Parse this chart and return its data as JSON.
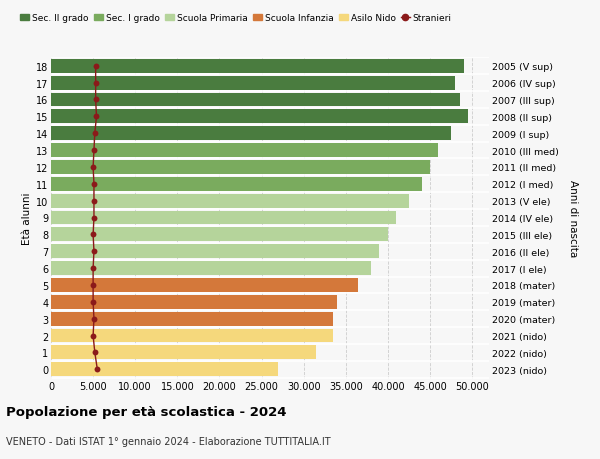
{
  "ages": [
    0,
    1,
    2,
    3,
    4,
    5,
    6,
    7,
    8,
    9,
    10,
    11,
    12,
    13,
    14,
    15,
    16,
    17,
    18
  ],
  "years": [
    "2023 (nido)",
    "2022 (nido)",
    "2021 (nido)",
    "2020 (mater)",
    "2019 (mater)",
    "2018 (mater)",
    "2017 (I ele)",
    "2016 (II ele)",
    "2015 (III ele)",
    "2014 (IV ele)",
    "2013 (V ele)",
    "2012 (I med)",
    "2011 (II med)",
    "2010 (III med)",
    "2009 (I sup)",
    "2008 (II sup)",
    "2007 (III sup)",
    "2006 (IV sup)",
    "2005 (V sup)"
  ],
  "bar_values": [
    27000,
    31500,
    33500,
    33500,
    34000,
    36500,
    38000,
    39000,
    40000,
    41000,
    42500,
    44000,
    45000,
    46000,
    47500,
    49500,
    48500,
    48000,
    49000
  ],
  "stranieri_values": [
    5500,
    5200,
    5000,
    5100,
    5000,
    5000,
    5000,
    5100,
    5000,
    5100,
    5100,
    5100,
    5000,
    5100,
    5200,
    5400,
    5300,
    5300,
    5300
  ],
  "colors": {
    "sec2": "#4a7c3f",
    "sec1": "#7aab5e",
    "primaria": "#b5d49b",
    "infanzia": "#d4783a",
    "nido": "#f5d87c",
    "stranieri": "#8b1a1a"
  },
  "color_per_age": {
    "0": "#f5d87c",
    "1": "#f5d87c",
    "2": "#f5d87c",
    "3": "#d4783a",
    "4": "#d4783a",
    "5": "#d4783a",
    "6": "#b5d49b",
    "7": "#b5d49b",
    "8": "#b5d49b",
    "9": "#b5d49b",
    "10": "#b5d49b",
    "11": "#7aab5e",
    "12": "#7aab5e",
    "13": "#7aab5e",
    "14": "#4a7c3f",
    "15": "#4a7c3f",
    "16": "#4a7c3f",
    "17": "#4a7c3f",
    "18": "#4a7c3f"
  },
  "xlim": [
    0,
    52000
  ],
  "xticks": [
    0,
    5000,
    10000,
    15000,
    20000,
    25000,
    30000,
    35000,
    40000,
    45000,
    50000
  ],
  "ylabel_left": "Età alunni",
  "ylabel_right": "Anni di nascita",
  "title": "Popolazione per età scolastica - 2024",
  "subtitle": "VENETO - Dati ISTAT 1° gennaio 2024 - Elaborazione TUTTITALIA.IT",
  "legend_items": [
    "Sec. II grado",
    "Sec. I grado",
    "Scuola Primaria",
    "Scuola Infanzia",
    "Asilo Nido",
    "Stranieri"
  ],
  "legend_colors": [
    "#4a7c3f",
    "#7aab5e",
    "#b5d49b",
    "#d4783a",
    "#f5d87c",
    "#8b1a1a"
  ],
  "background_color": "#f7f7f7",
  "bar_height": 0.82
}
